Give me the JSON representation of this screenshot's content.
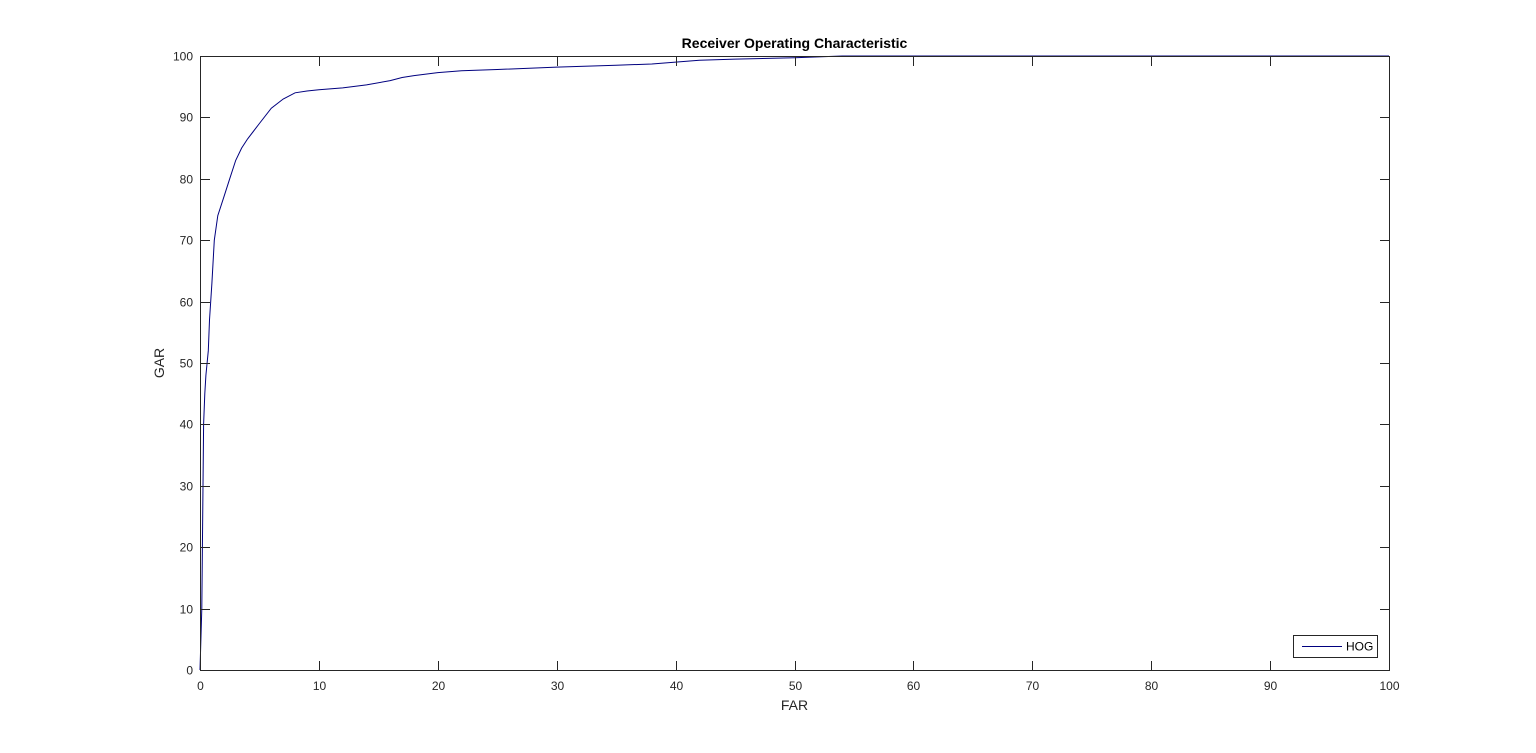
{
  "chart_data": {
    "type": "line",
    "title": "Receiver Operating Characteristic",
    "xlabel": "FAR",
    "ylabel": "GAR",
    "xlim": [
      0,
      100
    ],
    "ylim": [
      0,
      100
    ],
    "xticks": [
      0,
      10,
      20,
      30,
      40,
      50,
      60,
      70,
      80,
      90,
      100
    ],
    "yticks": [
      0,
      10,
      20,
      30,
      40,
      50,
      60,
      70,
      80,
      90,
      100
    ],
    "grid": false,
    "legend": {
      "position": "bottom-right"
    },
    "series": [
      {
        "name": "HOG",
        "color": "#00007f",
        "x": [
          0,
          0.15,
          0.2,
          0.25,
          0.3,
          0.4,
          0.5,
          0.6,
          0.7,
          0.8,
          1.0,
          1.2,
          1.5,
          2.0,
          2.5,
          3.0,
          3.5,
          4.0,
          5.0,
          6.0,
          7.0,
          8.0,
          9.0,
          10,
          12,
          14,
          16,
          17,
          18,
          20,
          22,
          25,
          30,
          35,
          38,
          40,
          42,
          45,
          50,
          54,
          60,
          70,
          80,
          90,
          100
        ],
        "y": [
          0,
          10,
          20,
          30,
          40,
          45,
          48,
          50,
          52,
          57,
          63,
          70,
          74,
          77,
          80,
          83,
          85,
          86.5,
          89,
          91.5,
          93,
          94,
          94.3,
          94.5,
          94.8,
          95.3,
          96,
          96.5,
          96.8,
          97.3,
          97.6,
          97.8,
          98.2,
          98.5,
          98.7,
          99.0,
          99.3,
          99.5,
          99.7,
          100,
          100,
          100,
          100,
          100,
          100
        ]
      }
    ]
  }
}
